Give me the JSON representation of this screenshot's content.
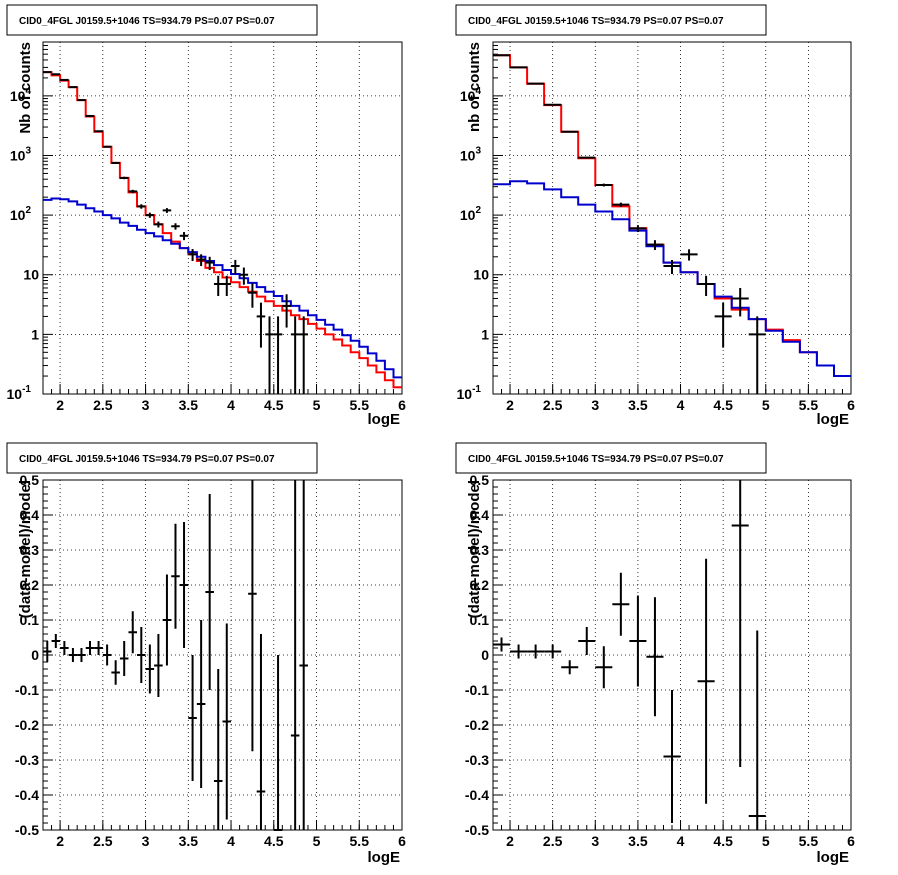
{
  "chart_data": [
    {
      "type": "histogram-line",
      "title": "CID0_4FGL J0159.5+1046 TS=934.79 PS=0.07 PS=0.07",
      "xlabel": "logE",
      "ylabel": "Nb of counts",
      "xlim": [
        1.8,
        6.0
      ],
      "ylim": [
        0.1,
        80000
      ],
      "yscale": "log",
      "grid": true,
      "xticks": [
        "2",
        "2.5",
        "3",
        "3.5",
        "4",
        "4.5",
        "5",
        "5.5",
        "6"
      ],
      "yticks": [
        "10^-1",
        "1",
        "10",
        "10^2",
        "10^3",
        "10^4"
      ],
      "bin_edges": [
        1.8,
        1.9,
        2.0,
        2.1,
        2.2,
        2.3,
        2.4,
        2.5,
        2.6,
        2.7,
        2.8,
        2.9,
        3.0,
        3.1,
        3.2,
        3.3,
        3.4,
        3.5,
        3.6,
        3.7,
        3.8,
        3.9,
        4.0,
        4.1,
        4.2,
        4.3,
        4.4,
        4.5,
        4.6,
        4.7,
        4.8,
        4.9,
        5.0,
        5.1,
        5.2,
        5.3,
        5.4,
        5.5,
        5.6,
        5.7,
        5.8,
        5.9,
        6.0
      ],
      "series": [
        {
          "color": "#ff0000",
          "values": [
            25000,
            22000,
            18000,
            14000,
            8500,
            4500,
            2500,
            1400,
            750,
            420,
            240,
            140,
            100,
            70,
            50,
            36,
            28,
            22,
            17,
            13,
            11,
            9,
            7.5,
            6.2,
            5.2,
            4.3,
            3.6,
            3.0,
            2.5,
            2.1,
            1.8,
            1.5,
            1.25,
            1.0,
            0.82,
            0.65,
            0.5,
            0.4,
            0.3,
            0.23,
            0.17,
            0.13
          ]
        },
        {
          "color": "#0000cc",
          "values": [
            180,
            190,
            185,
            170,
            150,
            130,
            115,
            100,
            88,
            75,
            66,
            57,
            50,
            44,
            38,
            33,
            28,
            24,
            20,
            17,
            14.5,
            12,
            10.3,
            8.7,
            7.3,
            6.2,
            5.2,
            4.4,
            3.6,
            3.0,
            2.5,
            2.1,
            1.75,
            1.45,
            1.2,
            0.97,
            0.78,
            0.62,
            0.48,
            0.36,
            0.26,
            0.19
          ]
        }
      ],
      "data_points": [
        {
          "x": 1.85,
          "y": 25000,
          "yerr": 160
        },
        {
          "x": 1.95,
          "y": 23000,
          "yerr": 150
        },
        {
          "x": 2.05,
          "y": 18500,
          "yerr": 136
        },
        {
          "x": 2.15,
          "y": 14000,
          "yerr": 120
        },
        {
          "x": 2.25,
          "y": 8500,
          "yerr": 92
        },
        {
          "x": 2.35,
          "y": 4600,
          "yerr": 68
        },
        {
          "x": 2.45,
          "y": 2550,
          "yerr": 50
        },
        {
          "x": 2.55,
          "y": 1400,
          "yerr": 37
        },
        {
          "x": 2.65,
          "y": 750,
          "yerr": 27
        },
        {
          "x": 2.75,
          "y": 420,
          "yerr": 20
        },
        {
          "x": 2.85,
          "y": 250,
          "yerr": 16
        },
        {
          "x": 2.95,
          "y": 140,
          "yerr": 12
        },
        {
          "x": 3.05,
          "y": 100,
          "yerr": 10
        },
        {
          "x": 3.15,
          "y": 70,
          "yerr": 8
        },
        {
          "x": 3.25,
          "y": 120,
          "yerr": 11
        },
        {
          "x": 3.35,
          "y": 65,
          "yerr": 8
        },
        {
          "x": 3.45,
          "y": 45,
          "yerr": 7
        },
        {
          "x": 3.55,
          "y": 22,
          "yerr": 5
        },
        {
          "x": 3.65,
          "y": 18,
          "yerr": 4
        },
        {
          "x": 3.75,
          "y": 16,
          "yerr": 4
        },
        {
          "x": 3.85,
          "y": 7,
          "yerr": 2.6
        },
        {
          "x": 3.95,
          "y": 7,
          "yerr": 2.6
        },
        {
          "x": 4.05,
          "y": 14,
          "yerr": 3.7
        },
        {
          "x": 4.15,
          "y": 10,
          "yerr": 3.2
        },
        {
          "x": 4.25,
          "y": 5,
          "yerr": 2.2
        },
        {
          "x": 4.35,
          "y": 2,
          "yerr": 1.4
        },
        {
          "x": 4.45,
          "y": 1,
          "yerr": 1
        },
        {
          "x": 4.55,
          "y": 1,
          "yerr": 1
        },
        {
          "x": 4.65,
          "y": 3,
          "yerr": 1.7
        },
        {
          "x": 4.75,
          "y": 1,
          "yerr": 1
        },
        {
          "x": 4.85,
          "y": 1,
          "yerr": 1
        }
      ]
    },
    {
      "type": "histogram-line",
      "title": "CID0_4FGL J0159.5+1046 TS=934.79 PS=0.07 PS=0.07",
      "xlabel": "logE",
      "ylabel": "nb of counts",
      "xlim": [
        1.8,
        6.0
      ],
      "ylim": [
        0.1,
        80000
      ],
      "yscale": "log",
      "grid": true,
      "xticks": [
        "2",
        "2.5",
        "3",
        "3.5",
        "4",
        "4.5",
        "5",
        "5.5",
        "6"
      ],
      "yticks": [
        "10^-1",
        "1",
        "10",
        "10^2",
        "10^3",
        "10^4"
      ],
      "bin_edges": [
        1.8,
        2.0,
        2.2,
        2.4,
        2.6,
        2.8,
        3.0,
        3.2,
        3.4,
        3.6,
        3.8,
        4.0,
        4.2,
        4.4,
        4.6,
        4.8,
        5.0,
        5.2,
        5.4,
        5.6,
        5.8,
        6.0
      ],
      "series": [
        {
          "color": "#ff0000",
          "values": [
            48000,
            30000,
            16000,
            7000,
            2500,
            900,
            320,
            140,
            60,
            32,
            16,
            11,
            7,
            4,
            2.6,
            1.8,
            1.2,
            0.8,
            0.5,
            0.3,
            0.2
          ]
        },
        {
          "color": "#0000cc",
          "values": [
            330,
            370,
            340,
            270,
            200,
            150,
            115,
            85,
            55,
            30,
            16,
            11,
            7,
            4.3,
            2.8,
            1.8,
            1.15,
            0.75,
            0.5,
            0.3,
            0.2
          ]
        }
      ],
      "data_points": [
        {
          "x": 1.9,
          "y": 48000,
          "yerr": 220
        },
        {
          "x": 2.1,
          "y": 30000,
          "yerr": 173
        },
        {
          "x": 2.3,
          "y": 16000,
          "yerr": 126
        },
        {
          "x": 2.5,
          "y": 7100,
          "yerr": 84
        },
        {
          "x": 2.7,
          "y": 2500,
          "yerr": 50
        },
        {
          "x": 2.9,
          "y": 920,
          "yerr": 30
        },
        {
          "x": 3.1,
          "y": 320,
          "yerr": 18
        },
        {
          "x": 3.3,
          "y": 150,
          "yerr": 12
        },
        {
          "x": 3.5,
          "y": 60,
          "yerr": 8
        },
        {
          "x": 3.7,
          "y": 32,
          "yerr": 6
        },
        {
          "x": 3.9,
          "y": 14,
          "yerr": 3.7
        },
        {
          "x": 4.1,
          "y": 22,
          "yerr": 4.7
        },
        {
          "x": 4.3,
          "y": 7,
          "yerr": 2.6
        },
        {
          "x": 4.5,
          "y": 2,
          "yerr": 1.4
        },
        {
          "x": 4.7,
          "y": 4,
          "yerr": 2
        },
        {
          "x": 4.9,
          "y": 1,
          "yerr": 1
        }
      ]
    },
    {
      "type": "errorbar",
      "title": "CID0_4FGL J0159.5+1046 TS=934.79 PS=0.07 PS=0.07",
      "xlabel": "logE",
      "ylabel": "(data-model)/model",
      "xlim": [
        1.8,
        6.0
      ],
      "ylim": [
        -0.5,
        0.5
      ],
      "grid": true,
      "xticks": [
        "2",
        "2.5",
        "3",
        "3.5",
        "4",
        "4.5",
        "5",
        "5.5",
        "6"
      ],
      "yticks": [
        "-0.5",
        "-0.4",
        "-0.3",
        "-0.2",
        "-0.1",
        "0",
        "0.1",
        "0.2",
        "0.3",
        "0.4",
        "0.5"
      ],
      "xerr": 0.05,
      "points": [
        {
          "x": 1.85,
          "y": 0.01,
          "err": 0.03
        },
        {
          "x": 1.95,
          "y": 0.04,
          "err": 0.02
        },
        {
          "x": 2.05,
          "y": 0.02,
          "err": 0.02
        },
        {
          "x": 2.15,
          "y": 0.0,
          "err": 0.02
        },
        {
          "x": 2.25,
          "y": 0.0,
          "err": 0.02
        },
        {
          "x": 2.35,
          "y": 0.02,
          "err": 0.02
        },
        {
          "x": 2.45,
          "y": 0.02,
          "err": 0.02
        },
        {
          "x": 2.55,
          "y": 0.0,
          "err": 0.03
        },
        {
          "x": 2.65,
          "y": -0.05,
          "err": 0.035
        },
        {
          "x": 2.75,
          "y": -0.01,
          "err": 0.05
        },
        {
          "x": 2.85,
          "y": 0.065,
          "err": 0.06
        },
        {
          "x": 2.95,
          "y": 0.0,
          "err": 0.08
        },
        {
          "x": 3.05,
          "y": -0.04,
          "err": 0.07
        },
        {
          "x": 3.15,
          "y": -0.03,
          "err": 0.09
        },
        {
          "x": 3.25,
          "y": 0.1,
          "err": 0.13
        },
        {
          "x": 3.35,
          "y": 0.225,
          "err": 0.15
        },
        {
          "x": 3.45,
          "y": 0.2,
          "err": 0.18
        },
        {
          "x": 3.55,
          "y": -0.18,
          "err": 0.18
        },
        {
          "x": 3.65,
          "y": -0.14,
          "err": 0.24
        },
        {
          "x": 3.75,
          "y": 0.18,
          "err": 0.28
        },
        {
          "x": 3.85,
          "y": -0.36,
          "err": 0.32
        },
        {
          "x": 3.95,
          "y": -0.19,
          "err": 0.28
        },
        {
          "x": 4.25,
          "y": 0.175,
          "err": 0.45
        },
        {
          "x": 4.35,
          "y": -0.39,
          "err": 0.45
        },
        {
          "x": 4.55,
          "y": -0.5,
          "err": 0.5
        },
        {
          "x": 4.75,
          "y": -0.23,
          "err": 0.9
        },
        {
          "x": 4.85,
          "y": -0.03,
          "err": 0.9
        }
      ]
    },
    {
      "type": "errorbar",
      "title": "CID0_4FGL J0159.5+1046 TS=934.79 PS=0.07 PS=0.07",
      "xlabel": "logE",
      "ylabel": "(data-model)/model",
      "xlim": [
        1.8,
        6.0
      ],
      "ylim": [
        -0.5,
        0.5
      ],
      "grid": true,
      "xticks": [
        "2",
        "2.5",
        "3",
        "3.5",
        "4",
        "4.5",
        "5",
        "5.5",
        "6"
      ],
      "yticks": [
        "-0.5",
        "-0.4",
        "-0.3",
        "-0.2",
        "-0.1",
        "0",
        "0.1",
        "0.2",
        "0.3",
        "0.4",
        "0.5"
      ],
      "xerr": 0.1,
      "points": [
        {
          "x": 1.9,
          "y": 0.03,
          "err": 0.02
        },
        {
          "x": 2.1,
          "y": 0.01,
          "err": 0.02
        },
        {
          "x": 2.3,
          "y": 0.01,
          "err": 0.02
        },
        {
          "x": 2.5,
          "y": 0.01,
          "err": 0.02
        },
        {
          "x": 2.7,
          "y": -0.035,
          "err": 0.02
        },
        {
          "x": 2.9,
          "y": 0.04,
          "err": 0.04
        },
        {
          "x": 3.1,
          "y": -0.035,
          "err": 0.06
        },
        {
          "x": 3.3,
          "y": 0.145,
          "err": 0.09
        },
        {
          "x": 3.5,
          "y": 0.04,
          "err": 0.13
        },
        {
          "x": 3.7,
          "y": -0.005,
          "err": 0.17
        },
        {
          "x": 3.9,
          "y": -0.29,
          "err": 0.19
        },
        {
          "x": 4.3,
          "y": -0.075,
          "err": 0.35
        },
        {
          "x": 4.7,
          "y": 0.37,
          "err": 0.69
        },
        {
          "x": 4.9,
          "y": -0.46,
          "err": 0.53
        }
      ]
    }
  ]
}
